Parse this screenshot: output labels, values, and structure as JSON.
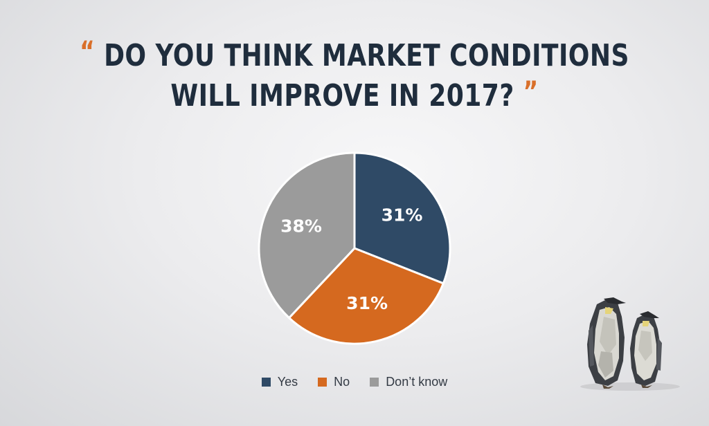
{
  "header": {
    "open_quote": "“",
    "title_line1": "DO YOU THINK MARKET CONDITIONS",
    "title_line2": "WILL IMPROVE IN 2017?",
    "close_quote": "”"
  },
  "chart_data": {
    "type": "pie",
    "title": "DO YOU THINK MARKET CONDITIONS WILL IMPROVE IN 2017?",
    "slices": [
      {
        "label": "Yes",
        "value": 31,
        "display": "31%",
        "color": "#2f4a66"
      },
      {
        "label": "No",
        "value": 31,
        "display": "31%",
        "color": "#d5691f"
      },
      {
        "label": "Don’t know",
        "value": 38,
        "display": "38%",
        "color": "#9b9b9b"
      }
    ],
    "legend_position": "bottom"
  },
  "colors": {
    "title": "#1f2d3d",
    "accent": "#d96f2a"
  },
  "decoration": {
    "icon": "penguins-illustration"
  }
}
